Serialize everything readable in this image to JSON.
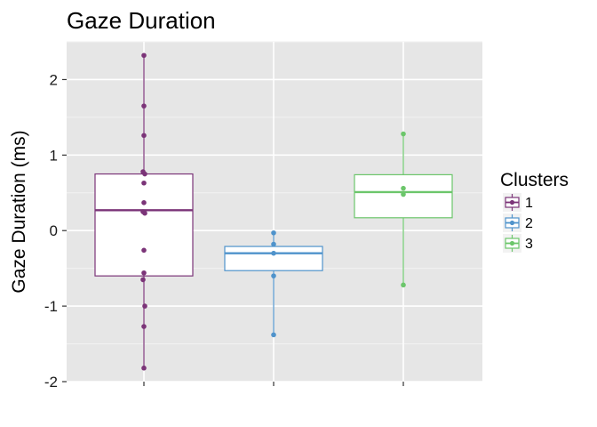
{
  "chart_data": {
    "type": "boxplot",
    "title": "Gaze Duration",
    "xlabel": "",
    "ylabel": "Gaze Duration (ms)",
    "ylim": [
      -2.0,
      2.5
    ],
    "yticks": [
      "-2",
      "-1",
      "0",
      "1",
      "2"
    ],
    "grid": true,
    "legend": {
      "title": "Clusters",
      "position": "right",
      "entries": [
        "1",
        "2",
        "3"
      ]
    },
    "series": [
      {
        "name": "1",
        "color": "#7b3478",
        "box": {
          "lower_whisker": -1.82,
          "q1": -0.6,
          "median": 0.27,
          "q3": 0.75,
          "upper_whisker": 2.32
        },
        "points": [
          2.32,
          1.65,
          1.26,
          0.78,
          0.75,
          0.63,
          0.37,
          0.25,
          0.23,
          -0.26,
          -0.56,
          -0.65,
          -1.0,
          -1.27,
          -1.82
        ]
      },
      {
        "name": "2",
        "color": "#4f93cb",
        "box": {
          "lower_whisker": -1.38,
          "q1": -0.53,
          "median": -0.3,
          "q3": -0.21,
          "upper_whisker": -0.03
        },
        "points": [
          -0.03,
          -0.18,
          -0.3,
          -0.6,
          -1.38
        ]
      },
      {
        "name": "3",
        "color": "#6cc66b",
        "box": {
          "lower_whisker": -0.72,
          "q1": 0.17,
          "median": 0.51,
          "q3": 0.74,
          "upper_whisker": 1.28
        },
        "points": [
          1.28,
          0.56,
          0.48,
          -0.72
        ]
      }
    ]
  }
}
